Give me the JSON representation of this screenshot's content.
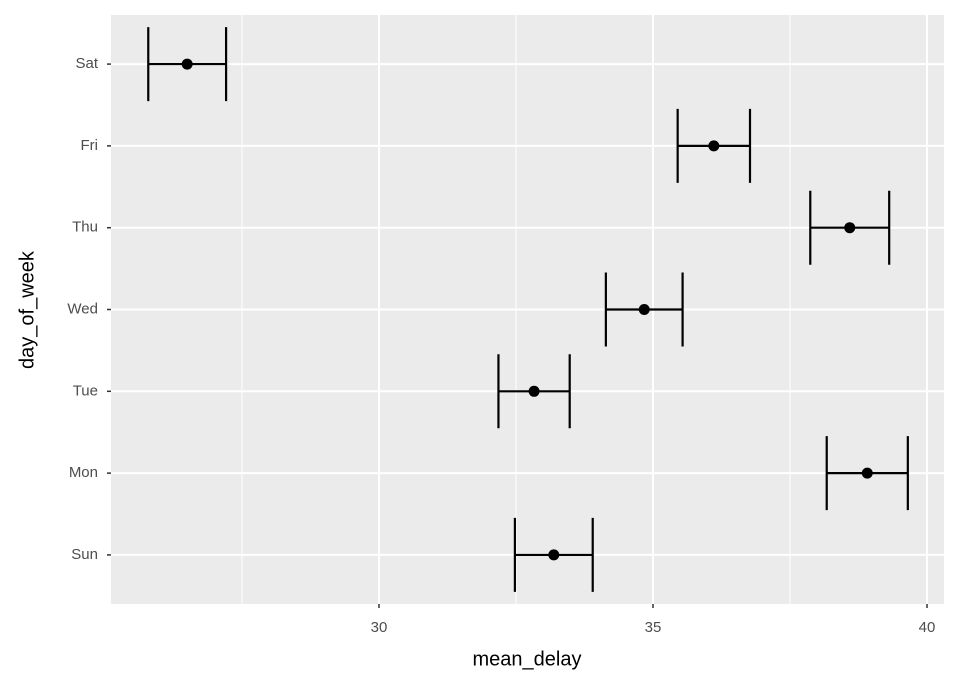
{
  "chart_data": {
    "type": "pointrange",
    "x_label": "mean_delay",
    "y_label": "day_of_week",
    "categories": [
      "Sun",
      "Mon",
      "Tue",
      "Wed",
      "Thu",
      "Fri",
      "Sat"
    ],
    "values": [
      33.19,
      38.91,
      32.83,
      34.84,
      38.59,
      36.11,
      26.5
    ],
    "errors": [
      0.71,
      0.74,
      0.65,
      0.7,
      0.72,
      0.66,
      0.71
    ],
    "color": "#000000",
    "xlim": [
      25.11,
      40.31
    ],
    "xticks": [
      30,
      35,
      40
    ],
    "x_minor_ticks": [
      27.5,
      32.5,
      37.5
    ],
    "grid": true
  }
}
